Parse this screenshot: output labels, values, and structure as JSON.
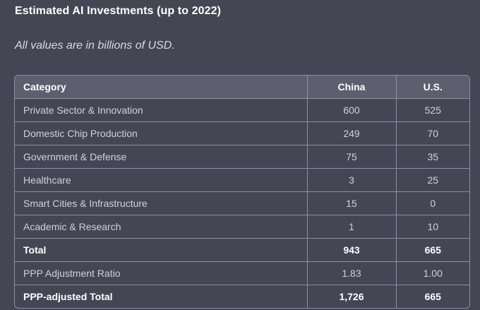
{
  "title": "Estimated AI Investments (up to 2022)",
  "note": "All values are in billions of USD.",
  "table": {
    "headers": [
      "Category",
      "China",
      "U.S."
    ],
    "rows": [
      {
        "category": "Private Sector & Innovation",
        "china": "600",
        "us": "525",
        "bold": false
      },
      {
        "category": "Domestic Chip Production",
        "china": "249",
        "us": "70",
        "bold": false
      },
      {
        "category": "Government & Defense",
        "china": "75",
        "us": "35",
        "bold": false
      },
      {
        "category": "Healthcare",
        "china": "3",
        "us": "25",
        "bold": false
      },
      {
        "category": "Smart Cities & Infrastructure",
        "china": "15",
        "us": "0",
        "bold": false
      },
      {
        "category": "Academic & Research",
        "china": "1",
        "us": "10",
        "bold": false
      },
      {
        "category": "Total",
        "china": "943",
        "us": "665",
        "bold": true
      },
      {
        "category": "PPP Adjustment Ratio",
        "china": "1.83",
        "us": "1.00",
        "bold": false
      },
      {
        "category": "PPP-adjusted Total",
        "china": "1,726",
        "us": "665",
        "bold": true
      }
    ]
  }
}
